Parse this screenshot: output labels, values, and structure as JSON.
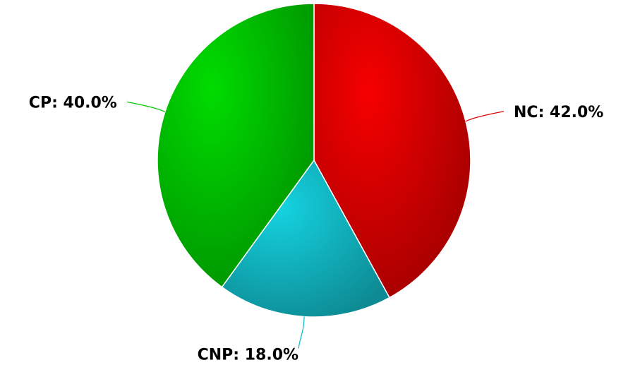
{
  "chart_data": {
    "type": "pie",
    "categories": [
      "NC",
      "CNP",
      "CP"
    ],
    "values": [
      42.0,
      18.0,
      40.0
    ],
    "value_labels": [
      "NC: 42.0%",
      "CNP: 18.0%",
      "CP: 40.0%"
    ],
    "colors": [
      "#e00000",
      "#12c0cc",
      "#00c800"
    ]
  }
}
